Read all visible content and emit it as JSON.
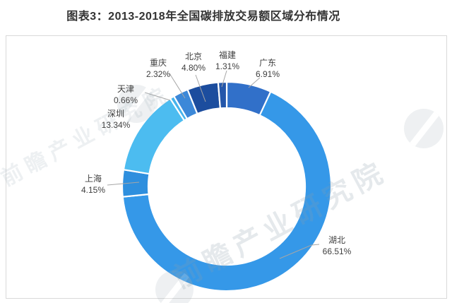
{
  "page": {
    "title": "图表3：2013-2018年全国碳排放交易额区域分布情况"
  },
  "watermark": {
    "brand_text": "前瞻产业研究院"
  },
  "chart_data": {
    "type": "pie",
    "subtype": "donut",
    "title": "图表3：2013-2018年全国碳排放交易额区域分布情况",
    "unit": "%",
    "start_angle_deg": 0,
    "direction": "clockwise",
    "legend_position": "none",
    "slices": [
      {
        "name": "广东",
        "value": 6.91,
        "pct": "6.91%",
        "color": "#3170C9"
      },
      {
        "name": "湖北",
        "value": 66.51,
        "pct": "66.51%",
        "color": "#3598E8"
      },
      {
        "name": "上海",
        "value": 4.15,
        "pct": "4.15%",
        "color": "#2E8FDE"
      },
      {
        "name": "深圳",
        "value": 13.34,
        "pct": "13.34%",
        "color": "#4CBCF0"
      },
      {
        "name": "天津",
        "value": 0.66,
        "pct": "0.66%",
        "color": "#45B3EC"
      },
      {
        "name": "重庆",
        "value": 2.32,
        "pct": "2.32%",
        "color": "#3C88D8"
      },
      {
        "name": "北京",
        "value": 4.8,
        "pct": "4.80%",
        "color": "#1C4D9E"
      },
      {
        "name": "福建",
        "value": 1.31,
        "pct": "1.31%",
        "color": "#2457AA"
      }
    ]
  }
}
